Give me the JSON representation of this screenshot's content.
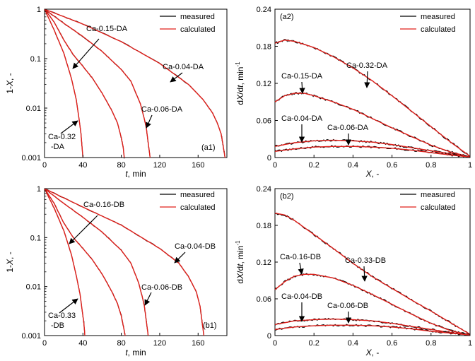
{
  "figure": {
    "panels": [
      {
        "panel_label": "(a1)",
        "legend": {
          "measured": "measured",
          "calculated": "calculated"
        },
        "axis_text": {
          "xlabel_italic": "t",
          "xlabel_rest": ", min",
          "ylabel_prefix": "1-",
          "ylabel_italic": "X",
          "ylabel_rest": ", -"
        },
        "annotations": [
          {
            "text": "Ca-0.15-DA"
          },
          {
            "text": "Ca-0.04-DA"
          },
          {
            "text": "Ca-0.06-DA"
          },
          {
            "text": "Ca-0.32",
            "text2": "-DA"
          }
        ]
      },
      {
        "panel_label": "(a2)",
        "legend": {
          "measured": "measured",
          "calculated": "calculated"
        },
        "axis_text": {
          "xlabel_italic": "X",
          "xlabel_rest": ", -",
          "ylabel_d1": "d",
          "ylabel_x": "X",
          "ylabel_slash": "/d",
          "ylabel_t": "t",
          "ylabel_unit": ", min",
          "ylabel_sup": "-1"
        },
        "annotations": [
          {
            "text": "Ca-0.32-DA"
          },
          {
            "text": "Ca-0.15-DA"
          },
          {
            "text": "Ca-0.04-DA"
          },
          {
            "text": "Ca-0.06-DA"
          }
        ]
      },
      {
        "panel_label": "(b1)",
        "legend": {
          "measured": "measured",
          "calculated": "calculated"
        },
        "axis_text": {
          "xlabel_italic": "t",
          "xlabel_rest": ", min",
          "ylabel_prefix": "1-",
          "ylabel_italic": "X",
          "ylabel_rest": ", -"
        },
        "annotations": [
          {
            "text": "Ca-0.16-DB"
          },
          {
            "text": "Ca-0.04-DB"
          },
          {
            "text": "Ca-0.06-DB"
          },
          {
            "text": "Ca-0.33",
            "text2": "-DB"
          }
        ]
      },
      {
        "panel_label": "(b2)",
        "legend": {
          "measured": "measured",
          "calculated": "calculated"
        },
        "axis_text": {
          "xlabel_italic": "X",
          "xlabel_rest": ", -",
          "ylabel_d1": "d",
          "ylabel_x": "X",
          "ylabel_slash": "/d",
          "ylabel_t": "t",
          "ylabel_unit": ", min",
          "ylabel_sup": "-1"
        },
        "annotations": [
          {
            "text": "Ca-0.33-DB"
          },
          {
            "text": "Ca-0.16-DB"
          },
          {
            "text": "Ca-0.04-DB"
          },
          {
            "text": "Ca-0.06-DB"
          }
        ]
      }
    ]
  },
  "colors": {
    "measured": "#000000",
    "calculated": "#e0201b",
    "axis": "#000000"
  },
  "chart_data": [
    {
      "type": "line",
      "panel": "(a1)",
      "xlabel": "t, min",
      "ylabel": "1-X, -",
      "y_scale": "log",
      "xlim": [
        0,
        190
      ],
      "ylim": [
        0.001,
        1
      ],
      "x_ticks": [
        "0",
        "40",
        "80",
        "120",
        "160"
      ],
      "y_ticks": [
        "0.001",
        "0.01",
        "0.1",
        "1"
      ],
      "legend_position": "top-right",
      "series": [
        {
          "name": "Ca-0.32-DA",
          "x": [
            0,
            10,
            20,
            28,
            33,
            36,
            38,
            39,
            40
          ],
          "y": [
            1,
            0.38,
            0.13,
            0.04,
            0.015,
            0.006,
            0.003,
            0.0017,
            0.001
          ]
        },
        {
          "name": "Ca-0.15-DA",
          "x": [
            0,
            10,
            20,
            30,
            40,
            50,
            60,
            70,
            76,
            80,
            82,
            83
          ],
          "y": [
            1,
            0.55,
            0.24,
            0.12,
            0.07,
            0.04,
            0.02,
            0.009,
            0.005,
            0.0025,
            0.0016,
            0.001
          ]
        },
        {
          "name": "Ca-0.06-DA",
          "x": [
            0,
            20,
            40,
            60,
            80,
            90,
            100,
            104,
            106,
            108,
            110
          ],
          "y": [
            1,
            0.52,
            0.28,
            0.14,
            0.06,
            0.035,
            0.012,
            0.006,
            0.004,
            0.002,
            0.001
          ]
        },
        {
          "name": "Ca-0.04-DA",
          "x": [
            0,
            40,
            80,
            120,
            150,
            165,
            175,
            180,
            184,
            186,
            188
          ],
          "y": [
            1,
            0.5,
            0.22,
            0.08,
            0.03,
            0.015,
            0.008,
            0.005,
            0.003,
            0.0018,
            0.001
          ]
        }
      ]
    },
    {
      "type": "line",
      "panel": "(a2)",
      "xlabel": "X, -",
      "ylabel": "dX/dt, min-1",
      "xlim": [
        0,
        1
      ],
      "ylim": [
        0,
        0.24
      ],
      "x_ticks": [
        "0",
        "0.2",
        "0.4",
        "0.6",
        "0.8",
        "1"
      ],
      "y_ticks": [
        "0",
        "0.06",
        "0.12",
        "0.18",
        "0.24"
      ],
      "legend_position": "top-right",
      "series": [
        {
          "name": "Ca-0.32-DA",
          "x": [
            0,
            0.05,
            0.1,
            0.2,
            0.3,
            0.4,
            0.5,
            0.6,
            0.7,
            0.8,
            0.9,
            1.0
          ],
          "y": [
            0.185,
            0.19,
            0.188,
            0.178,
            0.163,
            0.145,
            0.124,
            0.1,
            0.075,
            0.05,
            0.025,
            0.002
          ]
        },
        {
          "name": "Ca-0.15-DA",
          "x": [
            0,
            0.05,
            0.1,
            0.15,
            0.2,
            0.3,
            0.4,
            0.5,
            0.6,
            0.7,
            0.8,
            0.9,
            1.0
          ],
          "y": [
            0.09,
            0.1,
            0.104,
            0.104,
            0.1,
            0.09,
            0.078,
            0.063,
            0.048,
            0.034,
            0.02,
            0.009,
            0.001
          ]
        },
        {
          "name": "Ca-0.04-DA",
          "x": [
            0,
            0.1,
            0.2,
            0.3,
            0.4,
            0.5,
            0.6,
            0.7,
            0.8,
            0.9,
            1.0
          ],
          "y": [
            0.018,
            0.024,
            0.027,
            0.028,
            0.027,
            0.025,
            0.021,
            0.016,
            0.011,
            0.006,
            0.001
          ]
        },
        {
          "name": "Ca-0.06-DA",
          "x": [
            0,
            0.1,
            0.2,
            0.3,
            0.4,
            0.5,
            0.6,
            0.7,
            0.8,
            0.9,
            1.0
          ],
          "y": [
            0.01,
            0.014,
            0.017,
            0.018,
            0.018,
            0.017,
            0.015,
            0.012,
            0.008,
            0.004,
            0.001
          ]
        }
      ]
    },
    {
      "type": "line",
      "panel": "(b1)",
      "xlabel": "t, min",
      "ylabel": "1-X, -",
      "y_scale": "log",
      "xlim": [
        0,
        190
      ],
      "ylim": [
        0.001,
        1
      ],
      "x_ticks": [
        "0",
        "40",
        "80",
        "120",
        "160"
      ],
      "y_ticks": [
        "0.001",
        "0.01",
        "0.1",
        "1"
      ],
      "legend_position": "top-right",
      "series": [
        {
          "name": "Ca-0.33-DB",
          "x": [
            0,
            10,
            20,
            28,
            33,
            37,
            39,
            41,
            42
          ],
          "y": [
            1,
            0.4,
            0.14,
            0.045,
            0.017,
            0.007,
            0.0035,
            0.0018,
            0.001
          ]
        },
        {
          "name": "Ca-0.16-DB",
          "x": [
            0,
            10,
            20,
            30,
            40,
            50,
            60,
            70,
            76,
            80,
            82,
            84
          ],
          "y": [
            1,
            0.5,
            0.2,
            0.1,
            0.06,
            0.035,
            0.018,
            0.008,
            0.0045,
            0.0025,
            0.0016,
            0.001
          ]
        },
        {
          "name": "Ca-0.06-DB",
          "x": [
            0,
            20,
            40,
            60,
            80,
            90,
            98,
            102,
            104,
            106,
            108
          ],
          "y": [
            1,
            0.5,
            0.26,
            0.13,
            0.055,
            0.03,
            0.012,
            0.006,
            0.004,
            0.002,
            0.001
          ]
        },
        {
          "name": "Ca-0.04-DB",
          "x": [
            0,
            40,
            80,
            120,
            140,
            150,
            158,
            162,
            164,
            166
          ],
          "y": [
            1,
            0.42,
            0.18,
            0.06,
            0.03,
            0.016,
            0.008,
            0.004,
            0.002,
            0.001
          ]
        }
      ]
    },
    {
      "type": "line",
      "panel": "(b2)",
      "xlabel": "X, -",
      "ylabel": "dX/dt, min-1",
      "xlim": [
        0,
        1
      ],
      "ylim": [
        0,
        0.24
      ],
      "x_ticks": [
        "0",
        "0.2",
        "0.4",
        "0.6",
        "0.8",
        "1"
      ],
      "y_ticks": [
        "0",
        "0.06",
        "0.12",
        "0.18",
        "0.24"
      ],
      "legend_position": "top-right",
      "series": [
        {
          "name": "Ca-0.33-DB",
          "x": [
            0,
            0.05,
            0.1,
            0.2,
            0.3,
            0.4,
            0.5,
            0.6,
            0.7,
            0.8,
            0.9,
            1.0
          ],
          "y": [
            0.2,
            0.197,
            0.188,
            0.165,
            0.142,
            0.118,
            0.096,
            0.077,
            0.058,
            0.04,
            0.021,
            0.002
          ]
        },
        {
          "name": "Ca-0.16-DB",
          "x": [
            0,
            0.05,
            0.1,
            0.15,
            0.2,
            0.3,
            0.4,
            0.5,
            0.6,
            0.7,
            0.8,
            0.9,
            1.0
          ],
          "y": [
            0.075,
            0.088,
            0.097,
            0.1,
            0.1,
            0.094,
            0.082,
            0.067,
            0.051,
            0.035,
            0.02,
            0.008,
            0.001
          ]
        },
        {
          "name": "Ca-0.04-DB",
          "x": [
            0,
            0.1,
            0.2,
            0.3,
            0.4,
            0.5,
            0.6,
            0.7,
            0.8,
            0.9,
            1.0
          ],
          "y": [
            0.018,
            0.024,
            0.026,
            0.027,
            0.026,
            0.024,
            0.02,
            0.015,
            0.01,
            0.005,
            0.001
          ]
        },
        {
          "name": "Ca-0.06-DB",
          "x": [
            0,
            0.1,
            0.2,
            0.3,
            0.4,
            0.5,
            0.6,
            0.7,
            0.8,
            0.9,
            1.0
          ],
          "y": [
            0.01,
            0.014,
            0.016,
            0.017,
            0.017,
            0.016,
            0.014,
            0.011,
            0.007,
            0.004,
            0.001
          ]
        }
      ]
    }
  ]
}
